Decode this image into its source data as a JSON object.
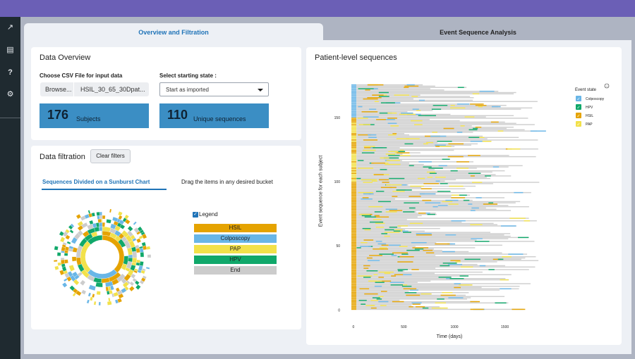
{
  "tabs": [
    {
      "label": "Overview and Filtration"
    },
    {
      "label": "Event Sequence Analysis"
    }
  ],
  "sidebar": {
    "icons": [
      "chart-line-icon",
      "table-icon",
      "question-icon",
      "gear-icon"
    ],
    "glyphs": [
      "↗",
      "▤",
      "?",
      "⚙"
    ]
  },
  "overview": {
    "title": "Data Overview",
    "csv_label": "Choose CSV File for input data",
    "browse_label": "Browse...",
    "file_name": "HSIL_30_65_30Dpat...",
    "start_label": "Select starting state :",
    "start_value": "Start as imported",
    "subjects_count": "176",
    "subjects_label": "Subjects",
    "unique_count": "110",
    "unique_label": "Unique sequences"
  },
  "filtration": {
    "title": "Data filtration",
    "clear_button": "Clear filters",
    "tab_sunburst": "Sequences Divided on a Sunburst Chart",
    "tab_drag": "Drag the items in any desired bucket",
    "legend_title": "Legend",
    "legend_items": [
      {
        "label": "HSIL",
        "color": "#e5a300"
      },
      {
        "label": "Colposcopy",
        "color": "#69b6e7"
      },
      {
        "label": "PAP",
        "color": "#f2e14a"
      },
      {
        "label": "HPV",
        "color": "#10a86a"
      },
      {
        "label": "End",
        "color": "#cccccc"
      }
    ]
  },
  "patient_chart": {
    "title": "Patient-level sequences",
    "legend_title": "Event state",
    "info_icon": "info-icon"
  },
  "chart_data": {
    "type": "bar",
    "title": "Patient-level sequences",
    "xlabel": "Time (days)",
    "ylabel": "Event sequence for each subject",
    "x_ticks": [
      0,
      500,
      1000,
      1500
    ],
    "y_ticks": [
      0,
      50,
      100,
      150
    ],
    "xlim": [
      -20,
      1950
    ],
    "ylim": [
      -2,
      178
    ],
    "subjects": 176,
    "series": [
      {
        "name": "Colposcopy",
        "color": "#69b6e7"
      },
      {
        "name": "HPV",
        "color": "#10a86a"
      },
      {
        "name": "HSIL",
        "color": "#e5a300"
      },
      {
        "name": "PAP",
        "color": "#f2e14a"
      }
    ],
    "legend_position": "top-right"
  }
}
